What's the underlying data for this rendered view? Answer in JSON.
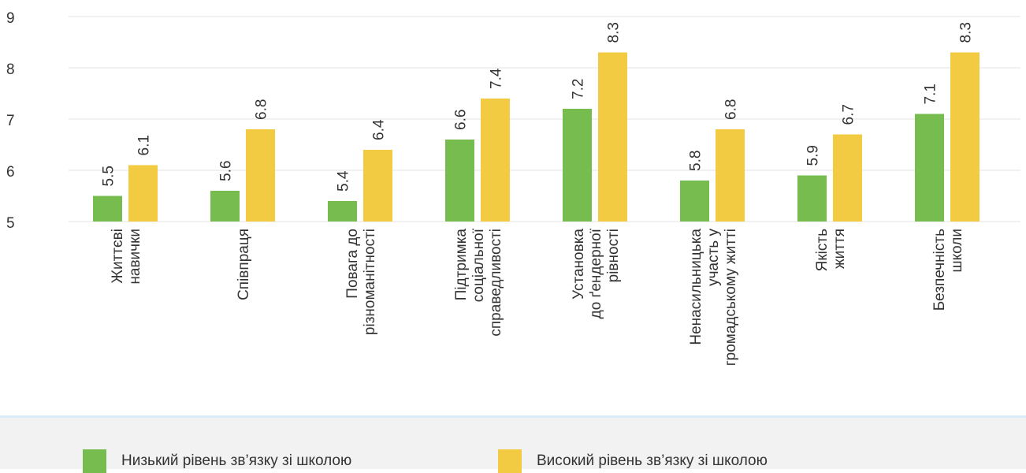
{
  "chart_data": {
    "type": "bar",
    "categories": [
      [
        "Життєві",
        "навички"
      ],
      [
        "Співпраця"
      ],
      [
        "Повага до",
        "різноманітності"
      ],
      [
        "Підтримка",
        "соціальної",
        "справедливості"
      ],
      [
        "Установка",
        "до ґендерної",
        "рівності"
      ],
      [
        "Ненасильницька",
        "участь у",
        "громадському житті"
      ],
      [
        "Якість",
        "життя"
      ],
      [
        "Безпечність",
        "школи"
      ]
    ],
    "series": [
      {
        "name": "Низький рівень зв’язку зі школою",
        "color": "#76bc4f",
        "values": [
          5.5,
          5.6,
          5.4,
          6.6,
          7.2,
          5.8,
          5.9,
          7.1
        ]
      },
      {
        "name": "Високий рівень зв’язку зі школою",
        "color": "#f3cb42",
        "values": [
          6.1,
          6.8,
          6.4,
          7.4,
          8.3,
          6.8,
          6.7,
          8.3
        ]
      }
    ],
    "data_labels": [
      [
        "5.5",
        "5.6",
        "5.4",
        "6.6",
        "7.2",
        "5.8",
        "5.9",
        "7.1"
      ],
      [
        "6.1",
        "6.8",
        "6.4",
        "7.4",
        "8.3",
        "6.8",
        "6.7",
        "8.3"
      ]
    ],
    "y_ticks": [
      "5",
      "6",
      "7",
      "8",
      "9"
    ],
    "ylim": [
      5,
      9
    ],
    "grid": true,
    "legend_position": "bottom"
  }
}
